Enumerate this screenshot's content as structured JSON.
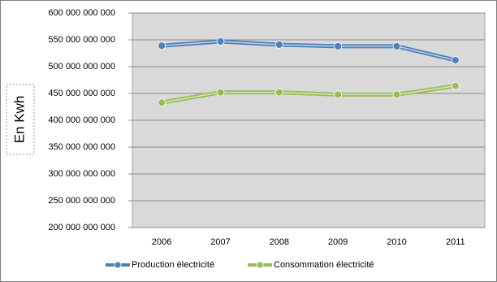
{
  "chart_data": {
    "type": "line",
    "y_label": "En Kwh",
    "categories": [
      "2006",
      "2007",
      "2008",
      "2009",
      "2010",
      "2011"
    ],
    "series": [
      {
        "name": "Production électricité",
        "color": "#4f81bd",
        "values": [
          539000000000,
          547000000000,
          541000000000,
          538000000000,
          538000000000,
          512000000000
        ]
      },
      {
        "name": "Consommation électricité",
        "color": "#9bbb59",
        "values": [
          433000000000,
          452000000000,
          452000000000,
          448000000000,
          448000000000,
          464000000000
        ]
      }
    ],
    "ylim": [
      200000000000,
      600000000000
    ],
    "yticks": [
      {
        "value": 200000000000,
        "label": "200 000 000 000"
      },
      {
        "value": 250000000000,
        "label": "250 000 000 000"
      },
      {
        "value": 300000000000,
        "label": "300 000 000 000"
      },
      {
        "value": 350000000000,
        "label": "350 000 000 000"
      },
      {
        "value": 400000000000,
        "label": "400 000 000 000"
      },
      {
        "value": 450000000000,
        "label": "450 000 000 000"
      },
      {
        "value": 500000000000,
        "label": "500 000 000 000"
      },
      {
        "value": 550000000000,
        "label": "550 000 000 000"
      },
      {
        "value": 600000000000,
        "label": "600 000 000 000"
      }
    ],
    "grid": true,
    "legend": "bottom"
  }
}
